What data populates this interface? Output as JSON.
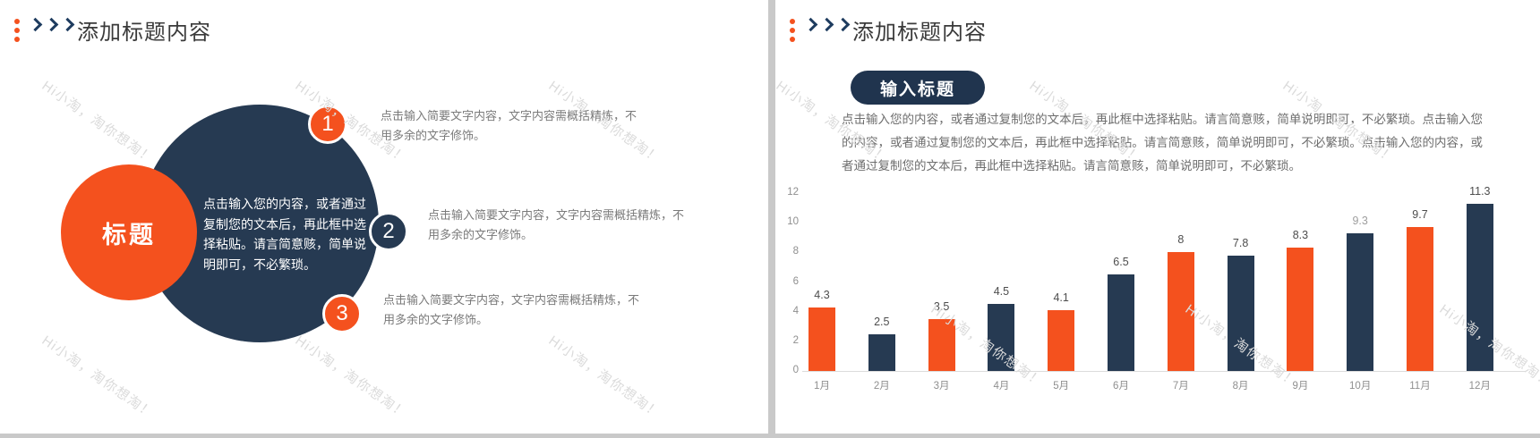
{
  "colors": {
    "orange": "#f4511e",
    "navy": "#263a52",
    "header_text": "#3a3a3a",
    "watermark": "#dbdbdb"
  },
  "watermark_text": "Hi小淘，淘你想淘！",
  "slide_left": {
    "header_title": "添加标题内容",
    "diagram": {
      "title_circle_label": "标题",
      "center_text": "点击输入您的内容，或者通过复制您的文本后，再此框中选择粘贴。请言简意赅，简单说明即可，不必繁琐。",
      "items": [
        {
          "num": "1",
          "text": "点击输入简要文字内容，文字内容需概括精炼，不用多余的文字修饰。"
        },
        {
          "num": "2",
          "text": "点击输入简要文字内容，文字内容需概括精炼，不用多余的文字修饰。"
        },
        {
          "num": "3",
          "text": "点击输入简要文字内容，文字内容需概括精炼，不用多余的文字修饰。"
        }
      ]
    }
  },
  "slide_right": {
    "header_title": "添加标题内容",
    "subtitle_pill": "输入标题",
    "body_text": "点击输入您的内容，或者通过复制您的文本后，再此框中选择粘贴。请言简意赅，简单说明即可，不必繁琐。点击输入您的内容，或者通过复制您的文本后，再此框中选择粘贴。请言简意赅，简单说明即可，不必繁琐。点击输入您的内容，或者通过复制您的文本后，再此框中选择粘贴。请言简意赅，简单说明即可，不必繁琐。"
  },
  "chart_data": {
    "type": "bar",
    "title": "",
    "xlabel": "",
    "ylabel": "",
    "categories": [
      "1月",
      "2月",
      "3月",
      "4月",
      "5月",
      "6月",
      "7月",
      "8月",
      "9月",
      "10月",
      "11月",
      "12月"
    ],
    "values": [
      4.3,
      2.5,
      3.5,
      4.5,
      4.1,
      6.5,
      8,
      7.8,
      8.3,
      9.3,
      9.7,
      11.3
    ],
    "value_labels": [
      "4.3",
      "2.5",
      "3.5",
      "4.5",
      "4.1",
      "6.5",
      "8",
      "7.8",
      "8.3",
      "9.3",
      "9.7",
      "11.3"
    ],
    "bar_colors": [
      "#f4511e",
      "#263a52",
      "#f4511e",
      "#263a52",
      "#f4511e",
      "#263a52",
      "#f4511e",
      "#263a52",
      "#f4511e",
      "#263a52",
      "#f4511e",
      "#263a52"
    ],
    "value_label_colors": [
      "#4d4d4d",
      "#4d4d4d",
      "#4d4d4d",
      "#4d4d4d",
      "#4d4d4d",
      "#4d4d4d",
      "#4d4d4d",
      "#4d4d4d",
      "#4d4d4d",
      "#9e9e9e",
      "#4d4d4d",
      "#4d4d4d"
    ],
    "ylim": [
      0,
      12
    ],
    "yticks": [
      0,
      2,
      4,
      6,
      8,
      10,
      12
    ],
    "grid": false,
    "legend": "none"
  }
}
